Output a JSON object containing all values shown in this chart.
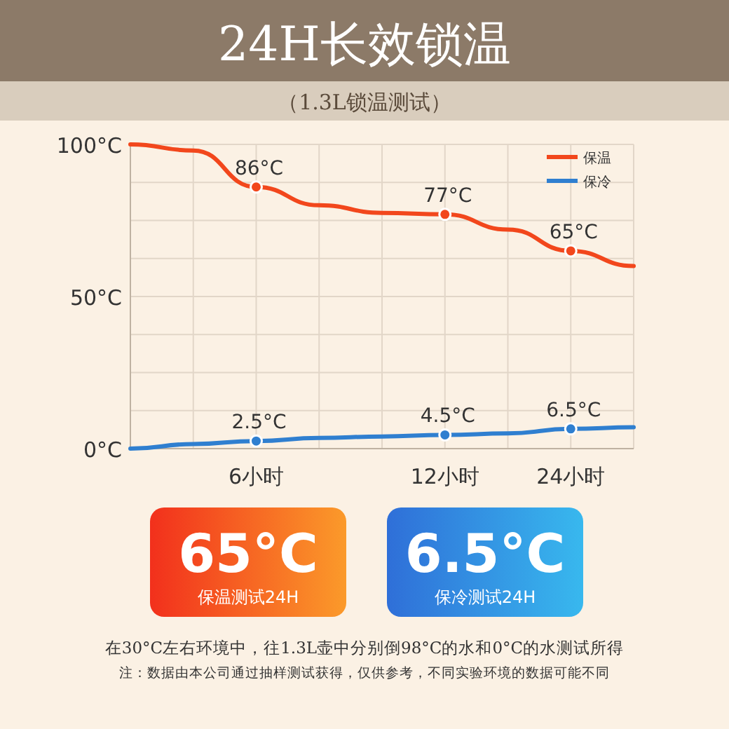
{
  "chart_data": {
    "type": "line",
    "title": "24H长效锁温",
    "subtitle": "（1.3L锁温测试）",
    "categories": [
      null,
      null,
      "6小时",
      null,
      null,
      "12小时",
      null,
      "24小时",
      null
    ],
    "series": [
      {
        "name": "保温",
        "color": "#f2471c",
        "values": [
          100,
          98,
          86,
          80,
          77.5,
          77,
          72,
          65,
          60
        ],
        "value_labels": [
          null,
          null,
          "86°C",
          null,
          null,
          "77°C",
          null,
          "65°C",
          null
        ]
      },
      {
        "name": "保冷",
        "color": "#2f7fd0",
        "values": [
          0,
          1.5,
          2.5,
          3.5,
          4,
          4.5,
          5,
          6.5,
          7
        ],
        "value_labels": [
          null,
          null,
          "2.5°C",
          null,
          null,
          "4.5°C",
          null,
          "6.5°C",
          null
        ]
      }
    ],
    "ylim": [
      0,
      100
    ],
    "yticks": [
      {
        "value": 0,
        "label": "0°C"
      },
      {
        "value": 50,
        "label": "50°C"
      },
      {
        "value": 100,
        "label": "100°C"
      }
    ],
    "grid": true,
    "legend": "top right",
    "marker": "none",
    "line_style": "solid",
    "annotations": [
      "65°C",
      "保温测试24H",
      "6.5°C",
      "保冷测试24H",
      "在30°C左右环境中，往1.3L壶中分别倒98°C的水和0°C的水测试所得",
      "注：数据由本公司通过抽样测试获得，仅供参考，不同实验环境的数据可能不同"
    ]
  }
}
